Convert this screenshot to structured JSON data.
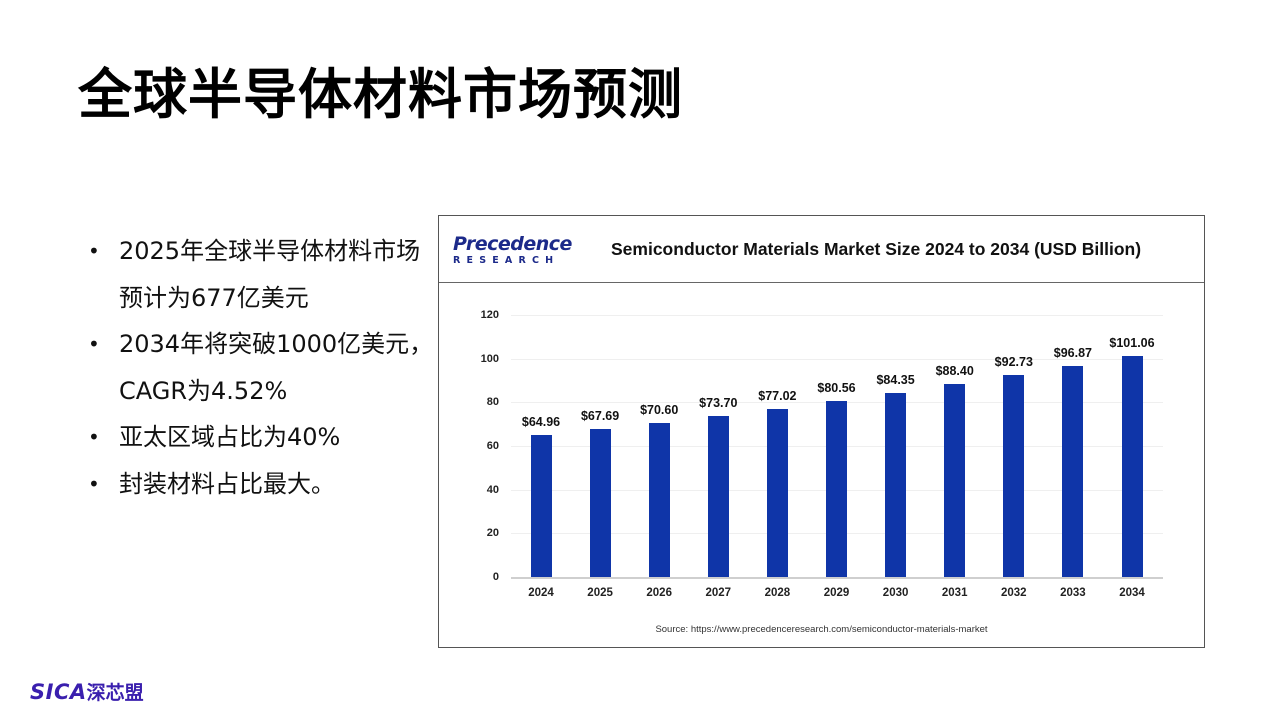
{
  "slide": {
    "title": "全球半导体材料市场预测",
    "bullets": [
      "2025年全球半导体材料市场预计为677亿美元",
      "2034年将突破1000亿美元，CAGR为4.52%",
      "亚太区域占比为40%",
      "封装材料占比最大。"
    ],
    "bullet_symbol": "•"
  },
  "chart_card": {
    "logo_top": "Precedence",
    "logo_bottom": "RESEARCH",
    "source": "Source: https://www.precedenceresearch.com/semiconductor-materials-market"
  },
  "footer": {
    "logo_en": "SICA",
    "logo_zh": "深芯盟"
  },
  "colors": {
    "bar": "#0f35a8",
    "brand_logo": "#3a1fae",
    "precedence_logo": "#1c2a8a"
  },
  "chart_data": {
    "type": "bar",
    "title": "Semiconductor Materials Market Size 2024 to 2034 (USD Billion)",
    "xlabel": "",
    "ylabel": "",
    "categories": [
      "2024",
      "2025",
      "2026",
      "2027",
      "2028",
      "2029",
      "2030",
      "2031",
      "2032",
      "2033",
      "2034"
    ],
    "values": [
      64.96,
      67.69,
      70.6,
      73.7,
      77.02,
      80.56,
      84.35,
      88.4,
      92.73,
      96.87,
      101.06
    ],
    "value_labels": [
      "$64.96",
      "$67.69",
      "$70.60",
      "$73.70",
      "$77.02",
      "$80.56",
      "$84.35",
      "$88.40",
      "$92.73",
      "$96.87",
      "$101.06"
    ],
    "ylim": [
      0,
      120
    ],
    "yticks": [
      0,
      20,
      40,
      60,
      80,
      100,
      120
    ],
    "grid": true,
    "legend": "none",
    "series_color": "#0f35a8"
  }
}
